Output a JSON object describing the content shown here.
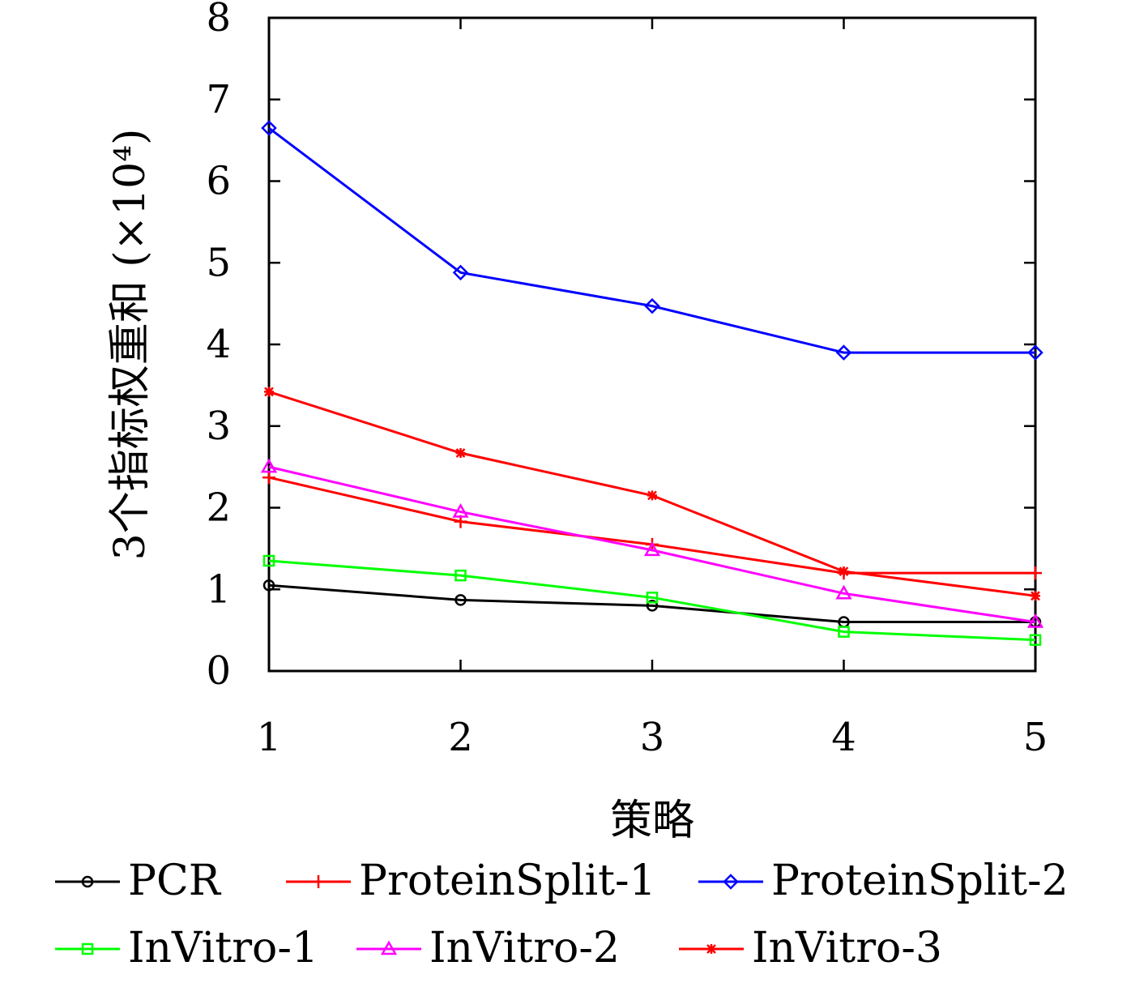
{
  "chart_data": {
    "type": "line",
    "title": "",
    "xlabel": "策略",
    "ylabel": "3个指标权重和 (×10⁴)",
    "x": [
      1,
      2,
      3,
      4,
      5
    ],
    "xlim": [
      1,
      5
    ],
    "ylim": [
      0,
      8
    ],
    "xticks": [
      1,
      2,
      3,
      4,
      5
    ],
    "yticks": [
      0,
      1,
      2,
      3,
      4,
      5,
      6,
      7,
      8
    ],
    "grid": false,
    "legend_position": "bottom",
    "series": [
      {
        "name": "PCR",
        "color": "#000000",
        "marker": "circle",
        "values": [
          1.05,
          0.87,
          0.8,
          0.6,
          0.6
        ]
      },
      {
        "name": "ProteinSplit-1",
        "color": "#ff0000",
        "marker": "plus",
        "values": [
          2.37,
          1.83,
          1.55,
          1.2,
          1.2
        ]
      },
      {
        "name": "ProteinSplit-2",
        "color": "#0000ff",
        "marker": "diamond",
        "values": [
          6.65,
          4.88,
          4.47,
          3.9,
          3.9
        ]
      },
      {
        "name": "InVitro-1",
        "color": "#00ff00",
        "marker": "square",
        "values": [
          1.35,
          1.17,
          0.9,
          0.48,
          0.38
        ]
      },
      {
        "name": "InVitro-2",
        "color": "#ff00ff",
        "marker": "triangle",
        "values": [
          2.5,
          1.95,
          1.48,
          0.95,
          0.6
        ]
      },
      {
        "name": "InVitro-3",
        "color": "#ff0000",
        "marker": "asterisk",
        "values": [
          3.42,
          2.67,
          2.15,
          1.22,
          0.92
        ]
      }
    ]
  }
}
